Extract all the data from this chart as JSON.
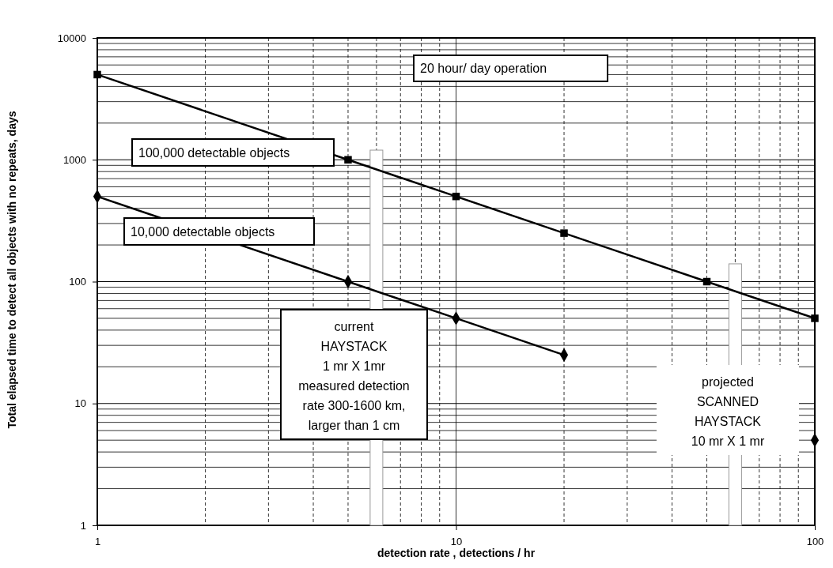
{
  "chart_data": {
    "type": "line",
    "xlabel": "detection rate , detections / hr",
    "ylabel": "Total elapsed time to detect all objects with no repeats, days",
    "log": "xy",
    "grid": true,
    "xlim": [
      1,
      100
    ],
    "xticks": [
      1,
      10,
      100
    ],
    "ylim": [
      1,
      10000
    ],
    "yticks": [
      1,
      10,
      100,
      1000,
      10000
    ],
    "series": [
      {
        "type": "bar",
        "color": "#ffffff",
        "x": [
          6,
          60
        ],
        "values": [
          1200,
          140
        ]
      },
      {
        "name": "100,000  detectable objects",
        "color": "#000000",
        "marker": "square",
        "x": [
          1,
          5,
          10,
          20,
          50,
          100
        ],
        "values": [
          5000,
          1000,
          500,
          250,
          100,
          50
        ]
      },
      {
        "name": "10,000  detectable objects",
        "color": "#000000",
        "marker": "diamond",
        "x": [
          1,
          5,
          10,
          20,
          50,
          100
        ],
        "values": [
          500,
          100,
          50,
          25,
          null,
          5
        ]
      }
    ],
    "annotations": [
      "20 hour/ day operation",
      "current\nHAYSTACK\n1 mr X 1mr\nmeasured detection\nrate 300-1600 km,\nlarger than 1 cm",
      "projected\nSCANNED\nHAYSTACK\n10 mr X  1 mr"
    ]
  }
}
